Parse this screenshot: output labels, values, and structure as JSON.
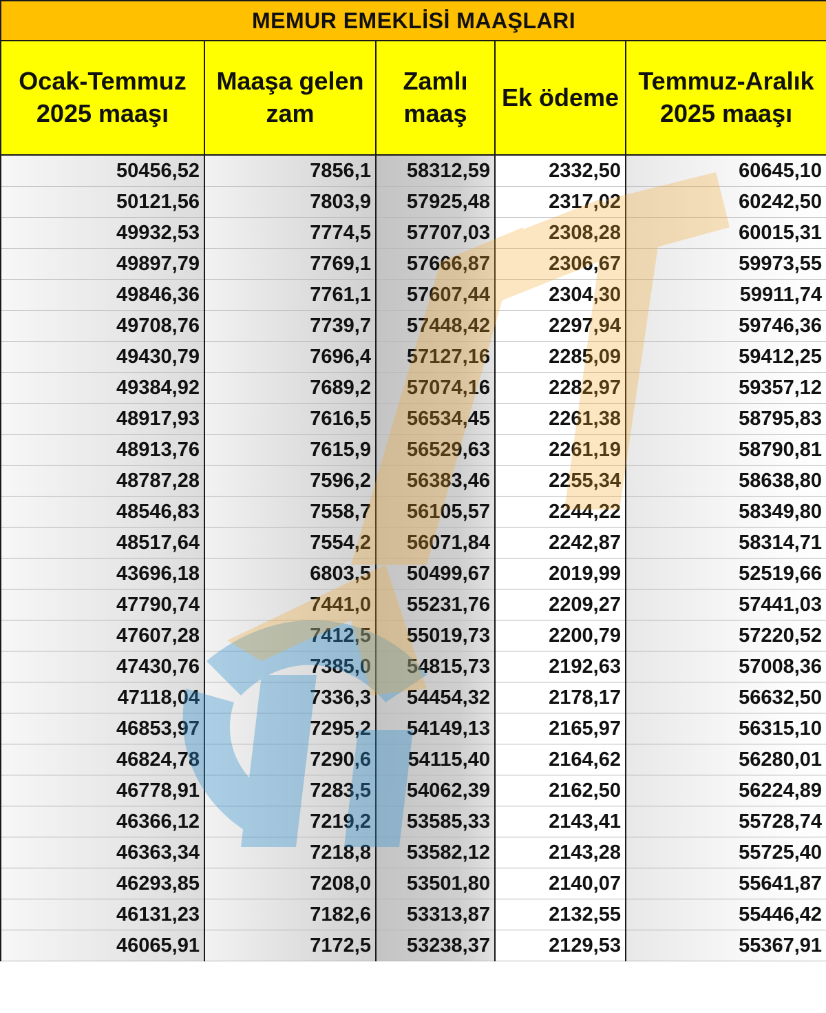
{
  "title": "MEMUR EMEKLİSİ MAAŞLARI",
  "headers": {
    "col1_line1": "Ocak-Temmuz",
    "col1_line2": "2025 maaşı",
    "col2_line1": "Maaşa gelen",
    "col2_line2": "zam",
    "col3_line1": "Zamlı",
    "col3_line2": "maaş",
    "col4": "Ek ödeme",
    "col5_line1": "Temmuz-Aralık",
    "col5_line2": "2025 maaşı"
  },
  "rows": [
    [
      "50456,52",
      "7856,1",
      "58312,59",
      "2332,50",
      "60645,10"
    ],
    [
      "50121,56",
      "7803,9",
      "57925,48",
      "2317,02",
      "60242,50"
    ],
    [
      "49932,53",
      "7774,5",
      "57707,03",
      "2308,28",
      "60015,31"
    ],
    [
      "49897,79",
      "7769,1",
      "57666,87",
      "2306,67",
      "59973,55"
    ],
    [
      "49846,36",
      "7761,1",
      "57607,44",
      "2304,30",
      "59911,74"
    ],
    [
      "49708,76",
      "7739,7",
      "57448,42",
      "2297,94",
      "59746,36"
    ],
    [
      "49430,79",
      "7696,4",
      "57127,16",
      "2285,09",
      "59412,25"
    ],
    [
      "49384,92",
      "7689,2",
      "57074,16",
      "2282,97",
      "59357,12"
    ],
    [
      "48917,93",
      "7616,5",
      "56534,45",
      "2261,38",
      "58795,83"
    ],
    [
      "48913,76",
      "7615,9",
      "56529,63",
      "2261,19",
      "58790,81"
    ],
    [
      "48787,28",
      "7596,2",
      "56383,46",
      "2255,34",
      "58638,80"
    ],
    [
      "48546,83",
      "7558,7",
      "56105,57",
      "2244,22",
      "58349,80"
    ],
    [
      "48517,64",
      "7554,2",
      "56071,84",
      "2242,87",
      "58314,71"
    ],
    [
      "43696,18",
      "6803,5",
      "50499,67",
      "2019,99",
      "52519,66"
    ],
    [
      "47790,74",
      "7441,0",
      "55231,76",
      "2209,27",
      "57441,03"
    ],
    [
      "47607,28",
      "7412,5",
      "55019,73",
      "2200,79",
      "57220,52"
    ],
    [
      "47430,76",
      "7385,0",
      "54815,73",
      "2192,63",
      "57008,36"
    ],
    [
      "47118,04",
      "7336,3",
      "54454,32",
      "2178,17",
      "56632,50"
    ],
    [
      "46853,97",
      "7295,2",
      "54149,13",
      "2165,97",
      "56315,10"
    ],
    [
      "46824,78",
      "7290,6",
      "54115,40",
      "2164,62",
      "56280,01"
    ],
    [
      "46778,91",
      "7283,5",
      "54062,39",
      "2162,50",
      "56224,89"
    ],
    [
      "46366,12",
      "7219,2",
      "53585,33",
      "2143,41",
      "55728,74"
    ],
    [
      "46363,34",
      "7218,8",
      "53582,12",
      "2143,28",
      "55725,40"
    ],
    [
      "46293,85",
      "7208,0",
      "53501,80",
      "2140,07",
      "55641,87"
    ],
    [
      "46131,23",
      "7182,6",
      "53313,87",
      "2132,55",
      "55446,42"
    ],
    [
      "46065,91",
      "7172,5",
      "53238,37",
      "2129,53",
      "55367,91"
    ]
  ],
  "colors": {
    "title_bg": "#ffc000",
    "header_bg": "#ffff00",
    "watermark_orange": "#f5a623",
    "watermark_blue": "#2a8fd0"
  },
  "watermark_icon": "tv-logo-watermark"
}
